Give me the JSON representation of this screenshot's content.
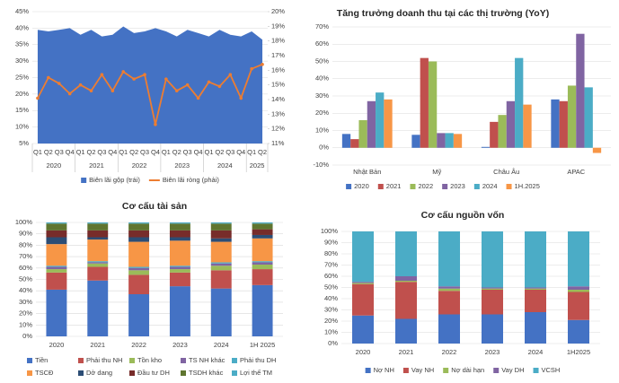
{
  "chart_data": [
    {
      "type": "combo",
      "categories": [
        "Q1",
        "Q2",
        "Q3",
        "Q4",
        "Q1",
        "Q2",
        "Q3",
        "Q4",
        "Q1",
        "Q2",
        "Q3",
        "Q4",
        "Q1",
        "Q2",
        "Q3",
        "Q4",
        "Q1",
        "Q2",
        "Q3",
        "Q4",
        "Q1",
        "Q2"
      ],
      "x_groups": [
        {
          "label": "2020",
          "count": 4
        },
        {
          "label": "2021",
          "count": 4
        },
        {
          "label": "2022",
          "count": 4
        },
        {
          "label": "2023",
          "count": 4
        },
        {
          "label": "2024",
          "count": 4
        },
        {
          "label": "2025",
          "count": 2
        }
      ],
      "series": [
        {
          "name": "Biên lãi gộp (trái)",
          "kind": "area",
          "color": "#4472c4",
          "values": [
            39.5,
            39,
            39.5,
            40,
            38,
            39.5,
            37.5,
            38,
            40.5,
            38.5,
            39,
            40,
            39,
            37.5,
            39.5,
            38.5,
            37.5,
            39.5,
            38,
            37.5,
            39,
            36.5
          ]
        },
        {
          "name": "Biên lãi ròng (phải)",
          "kind": "line",
          "axis": "y2",
          "color": "#ed7d31",
          "values": [
            14.1,
            15.5,
            15.1,
            14.4,
            15.0,
            14.6,
            15.7,
            14.6,
            15.9,
            15.4,
            15.7,
            12.3,
            15.4,
            14.6,
            15.0,
            14.1,
            15.2,
            14.9,
            15.7,
            14.1,
            16.1,
            16.4
          ]
        }
      ],
      "ylim": [
        5,
        45
      ],
      "yticks": [
        {
          "value": 5,
          "label": "5%"
        },
        {
          "value": 10,
          "label": "10%"
        },
        {
          "value": 15,
          "label": "15%"
        },
        {
          "value": 20,
          "label": "20%"
        },
        {
          "value": 25,
          "label": "25%"
        },
        {
          "value": 30,
          "label": "30%"
        },
        {
          "value": 35,
          "label": "35%"
        },
        {
          "value": 40,
          "label": "40%"
        },
        {
          "value": 45,
          "label": "45%"
        }
      ],
      "y2lim": [
        11,
        20
      ],
      "y2ticks": [
        {
          "value": 11,
          "label": "11%"
        },
        {
          "value": 12,
          "label": "12%"
        },
        {
          "value": 13,
          "label": "13%"
        },
        {
          "value": 14,
          "label": "14%"
        },
        {
          "value": 15,
          "label": "15%"
        },
        {
          "value": 16,
          "label": "16%"
        },
        {
          "value": 17,
          "label": "17%"
        },
        {
          "value": 18,
          "label": "18%"
        },
        {
          "value": 19,
          "label": "19%"
        },
        {
          "value": 20,
          "label": "20%"
        }
      ],
      "grid": true
    },
    {
      "type": "bar",
      "title": "Tăng trưởng doanh thu tại các thị trường (YoY)",
      "categories": [
        "Nhật Bản",
        "Mỹ",
        "Châu Âu",
        "APAC"
      ],
      "series": [
        {
          "name": "2020",
          "color": "#4472c4",
          "values": [
            8,
            7.5,
            0.5,
            28
          ]
        },
        {
          "name": "2021",
          "color": "#c0504d",
          "values": [
            5,
            52,
            15,
            27
          ]
        },
        {
          "name": "2022",
          "color": "#9bbb59",
          "values": [
            16,
            50,
            19,
            36
          ]
        },
        {
          "name": "2023",
          "color": "#8064a2",
          "values": [
            27,
            8.5,
            27,
            66
          ]
        },
        {
          "name": "2024",
          "color": "#4bacc6",
          "values": [
            32,
            8.5,
            52,
            35
          ]
        },
        {
          "name": "1H.2025",
          "color": "#f79646",
          "values": [
            28,
            8,
            25,
            -3
          ]
        }
      ],
      "ylim": [
        -10,
        70
      ],
      "yticks": [
        {
          "value": -10,
          "label": "-10%"
        },
        {
          "value": 0,
          "label": "0%"
        },
        {
          "value": 10,
          "label": "10%"
        },
        {
          "value": 20,
          "label": "20%"
        },
        {
          "value": 30,
          "label": "30%"
        },
        {
          "value": 40,
          "label": "40%"
        },
        {
          "value": 50,
          "label": "50%"
        },
        {
          "value": 60,
          "label": "60%"
        },
        {
          "value": 70,
          "label": "70%"
        }
      ],
      "grid": true
    },
    {
      "type": "stacked_bar",
      "title": "Cơ cấu tài sản",
      "categories": [
        "2020",
        "2021",
        "2022",
        "2023",
        "2024",
        "1H 2025"
      ],
      "series": [
        {
          "name": "Tiền",
          "color": "#4472c4",
          "values": [
            41,
            49,
            37,
            44,
            42,
            45
          ]
        },
        {
          "name": "Phải thu NH",
          "color": "#c0504d",
          "values": [
            15,
            12,
            17,
            12,
            16,
            14
          ]
        },
        {
          "name": "Tồn kho",
          "color": "#9bbb59",
          "values": [
            3,
            3,
            4,
            3,
            4,
            4
          ]
        },
        {
          "name": "TS NH khác",
          "color": "#8064a2",
          "values": [
            2,
            1,
            2,
            2,
            2,
            2
          ]
        },
        {
          "name": "Phải thu DH",
          "color": "#4bacc6",
          "values": [
            1,
            1,
            1,
            1,
            1,
            1
          ]
        },
        {
          "name": "TSCĐ",
          "color": "#f79646",
          "values": [
            19,
            19,
            22,
            22,
            18,
            20
          ]
        },
        {
          "name": "Dở dang",
          "color": "#2c4d75",
          "values": [
            6,
            2,
            4,
            3,
            3,
            3
          ]
        },
        {
          "name": "Đầu tư DH",
          "color": "#772c2a",
          "values": [
            6,
            6,
            6,
            6,
            7,
            5
          ]
        },
        {
          "name": "TSDH khác",
          "color": "#5f7530",
          "values": [
            6,
            6,
            6,
            6,
            6,
            5
          ]
        },
        {
          "name": "Lợi thế TM",
          "color": "#4bacc6",
          "values": [
            1,
            1,
            1,
            1,
            1,
            1
          ]
        }
      ],
      "ylim": [
        0,
        100
      ],
      "yticks": [
        {
          "value": 0,
          "label": "0%"
        },
        {
          "value": 10,
          "label": "10%"
        },
        {
          "value": 20,
          "label": "20%"
        },
        {
          "value": 30,
          "label": "30%"
        },
        {
          "value": 40,
          "label": "40%"
        },
        {
          "value": 50,
          "label": "50%"
        },
        {
          "value": 60,
          "label": "60%"
        },
        {
          "value": 70,
          "label": "70%"
        },
        {
          "value": 80,
          "label": "80%"
        },
        {
          "value": 90,
          "label": "90%"
        },
        {
          "value": 100,
          "label": "100%"
        }
      ],
      "grid": true,
      "legend_columns": 5
    },
    {
      "type": "stacked_bar",
      "title": "Cơ cấu nguồn vốn",
      "categories": [
        "2020",
        "2021",
        "2022",
        "2023",
        "2024",
        "1H2025"
      ],
      "series": [
        {
          "name": "Nợ NH",
          "color": "#4472c4",
          "values": [
            25,
            22,
            26,
            26,
            28,
            21
          ]
        },
        {
          "name": "Vay NH",
          "color": "#c0504d",
          "values": [
            28,
            33,
            21,
            22,
            20,
            25
          ]
        },
        {
          "name": "Nợ dài hạn",
          "color": "#9bbb59",
          "values": [
            1,
            1,
            2,
            1,
            1,
            2
          ]
        },
        {
          "name": "Vay DH",
          "color": "#8064a2",
          "values": [
            1,
            4,
            2,
            1,
            1,
            3
          ]
        },
        {
          "name": "VCSH",
          "color": "#4bacc6",
          "values": [
            45,
            40,
            49,
            50,
            50,
            49
          ]
        }
      ],
      "ylim": [
        0,
        100
      ],
      "yticks": [
        {
          "value": 0,
          "label": "0%"
        },
        {
          "value": 10,
          "label": "10%"
        },
        {
          "value": 20,
          "label": "20%"
        },
        {
          "value": 30,
          "label": "30%"
        },
        {
          "value": 40,
          "label": "40%"
        },
        {
          "value": 50,
          "label": "50%"
        },
        {
          "value": 60,
          "label": "60%"
        },
        {
          "value": 70,
          "label": "70%"
        },
        {
          "value": 80,
          "label": "80%"
        },
        {
          "value": 90,
          "label": "90%"
        },
        {
          "value": 100,
          "label": "100%"
        }
      ],
      "grid": true
    }
  ]
}
